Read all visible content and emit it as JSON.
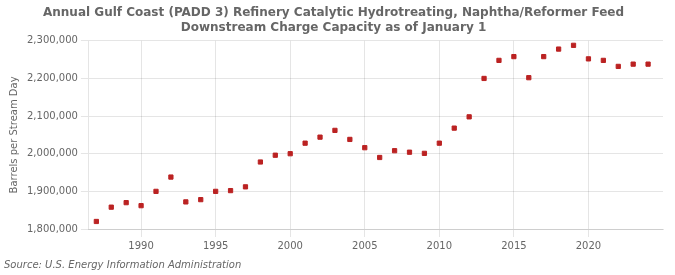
{
  "chart_data": {
    "type": "scatter",
    "title": "Annual Gulf Coast (PADD 3) Refinery Catalytic Hydrotreating, Naphtha/Reformer Feed\nDownstream Charge Capacity as of January 1",
    "ylabel": "Barrels per Stream Day",
    "source": "Source: U.S. Energy Information Administration",
    "x": [
      1987,
      1988,
      1989,
      1990,
      1991,
      1992,
      1993,
      1994,
      1995,
      1996,
      1997,
      1998,
      1999,
      2000,
      2001,
      2002,
      2003,
      2004,
      2005,
      2006,
      2007,
      2008,
      2009,
      2010,
      2011,
      2012,
      2013,
      2014,
      2015,
      2016,
      2017,
      2018,
      2019,
      2020,
      2021,
      2022,
      2023,
      2024
    ],
    "values": [
      1820000,
      1858000,
      1870000,
      1862000,
      1900000,
      1938000,
      1872000,
      1878000,
      1900000,
      1902000,
      1912000,
      1978000,
      1996000,
      2000000,
      2028000,
      2044000,
      2062000,
      2038000,
      2016000,
      1990000,
      2008000,
      2004000,
      2001000,
      2028000,
      2068000,
      2098000,
      2200000,
      2248000,
      2258000,
      2202000,
      2258000,
      2278000,
      2288000,
      2252000,
      2248000,
      2232000,
      2238000,
      2238000
    ],
    "color": "#bb2222",
    "marker": "square",
    "grid": true,
    "xlim": [
      1986.5,
      2025
    ],
    "xticks": [
      1990,
      1995,
      2000,
      2005,
      2010,
      2015,
      2020
    ],
    "ylim": [
      1800000,
      2300000
    ],
    "yticks": [
      {
        "value": 1800000,
        "label": "1,800,000"
      },
      {
        "value": 1900000,
        "label": "1,900,000"
      },
      {
        "value": 2000000,
        "label": "2,000,000"
      },
      {
        "value": 2100000,
        "label": "2,100,000"
      },
      {
        "value": 2200000,
        "label": "2,200,000"
      },
      {
        "value": 2300000,
        "label": "2,300,000"
      }
    ]
  }
}
